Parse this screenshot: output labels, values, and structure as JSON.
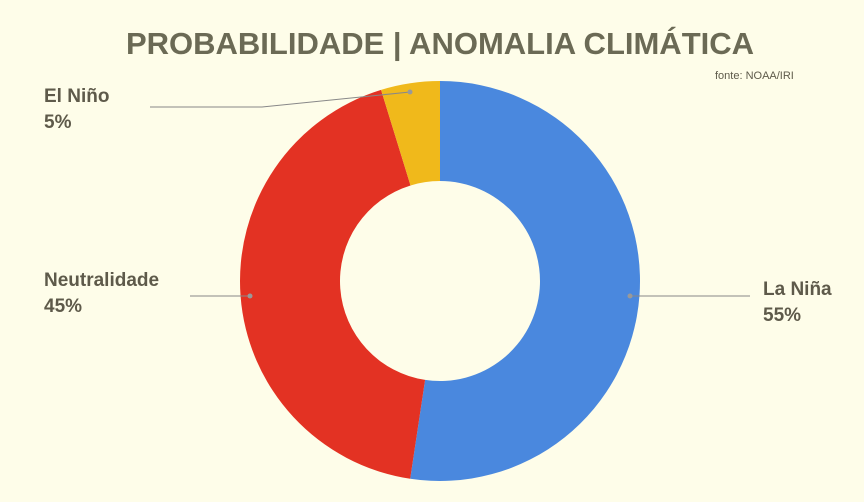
{
  "chart_data": {
    "type": "donut",
    "title": "PROBABILIDADE | ANOMALIA CLIMÁTICA",
    "subtitle": "fonte: NOAA/IRI",
    "categories": [
      "La Niña",
      "Neutralidade",
      "El Niño"
    ],
    "values": [
      55,
      45,
      5
    ],
    "value_labels": [
      "55%",
      "45%",
      "5%"
    ],
    "colors": [
      "#4a88de",
      "#e33223",
      "#f0b91b"
    ]
  }
}
